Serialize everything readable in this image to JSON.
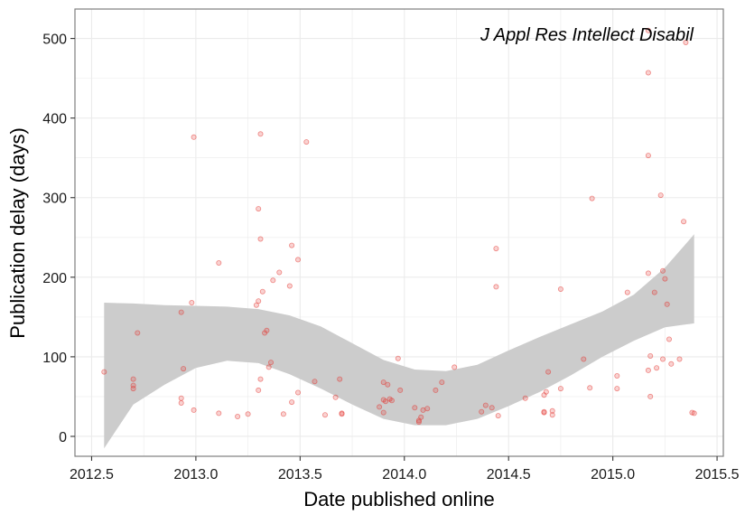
{
  "chart_data": {
    "type": "scatter",
    "title": "",
    "annotation": "J Appl Res Intellect Disabil",
    "xlabel": "Date published online",
    "ylabel": "Publication delay (days)",
    "xlim": [
      2012.42,
      2015.53
    ],
    "ylim": [
      -25,
      537
    ],
    "xticks": [
      2012.5,
      2013.0,
      2013.5,
      2014.0,
      2014.5,
      2015.0,
      2015.5
    ],
    "xtick_labels": [
      "2012.5",
      "2013.0",
      "2013.5",
      "2014.0",
      "2014.5",
      "2015.0",
      "2015.5"
    ],
    "yticks": [
      0,
      100,
      200,
      300,
      400,
      500
    ],
    "ytick_labels": [
      "0",
      "100",
      "200",
      "300",
      "400",
      "500"
    ],
    "grid": true,
    "colors": {
      "points": "#e3342f",
      "band": "#cccccc",
      "panel_border": "#7f7f7f",
      "grid": "#ebebeb"
    },
    "points": [
      [
        2012.56,
        81
      ],
      [
        2012.7,
        72
      ],
      [
        2012.7,
        64
      ],
      [
        2012.7,
        60
      ],
      [
        2012.72,
        130
      ],
      [
        2012.93,
        156
      ],
      [
        2012.93,
        48
      ],
      [
        2012.93,
        42
      ],
      [
        2012.94,
        85
      ],
      [
        2012.98,
        168
      ],
      [
        2012.99,
        376
      ],
      [
        2012.99,
        33
      ],
      [
        2013.11,
        218
      ],
      [
        2013.11,
        29
      ],
      [
        2013.2,
        25
      ],
      [
        2013.25,
        28
      ],
      [
        2013.29,
        165
      ],
      [
        2013.3,
        286
      ],
      [
        2013.3,
        170
      ],
      [
        2013.3,
        58
      ],
      [
        2013.31,
        380
      ],
      [
        2013.31,
        248
      ],
      [
        2013.31,
        72
      ],
      [
        2013.32,
        182
      ],
      [
        2013.33,
        130
      ],
      [
        2013.34,
        133
      ],
      [
        2013.35,
        87
      ],
      [
        2013.36,
        93
      ],
      [
        2013.37,
        196
      ],
      [
        2013.4,
        206
      ],
      [
        2013.42,
        28
      ],
      [
        2013.45,
        189
      ],
      [
        2013.46,
        240
      ],
      [
        2013.46,
        43
      ],
      [
        2013.49,
        222
      ],
      [
        2013.49,
        55
      ],
      [
        2013.53,
        370
      ],
      [
        2013.57,
        69
      ],
      [
        2013.62,
        27
      ],
      [
        2013.67,
        49
      ],
      [
        2013.69,
        72
      ],
      [
        2013.7,
        29
      ],
      [
        2013.7,
        28
      ],
      [
        2013.88,
        37
      ],
      [
        2013.9,
        30
      ],
      [
        2013.9,
        68
      ],
      [
        2013.9,
        46
      ],
      [
        2013.91,
        44
      ],
      [
        2013.92,
        65
      ],
      [
        2013.93,
        47
      ],
      [
        2013.94,
        45
      ],
      [
        2013.97,
        98
      ],
      [
        2013.98,
        58
      ],
      [
        2014.05,
        36
      ],
      [
        2014.07,
        20
      ],
      [
        2014.07,
        18
      ],
      [
        2014.08,
        24
      ],
      [
        2014.09,
        33
      ],
      [
        2014.11,
        35
      ],
      [
        2014.15,
        58
      ],
      [
        2014.18,
        68
      ],
      [
        2014.24,
        87
      ],
      [
        2014.37,
        31
      ],
      [
        2014.39,
        39
      ],
      [
        2014.42,
        36
      ],
      [
        2014.44,
        236
      ],
      [
        2014.44,
        188
      ],
      [
        2014.45,
        26
      ],
      [
        2014.58,
        48
      ],
      [
        2014.67,
        30
      ],
      [
        2014.67,
        31
      ],
      [
        2014.67,
        52
      ],
      [
        2014.68,
        56
      ],
      [
        2014.69,
        81
      ],
      [
        2014.71,
        32
      ],
      [
        2014.71,
        27
      ],
      [
        2014.75,
        185
      ],
      [
        2014.75,
        60
      ],
      [
        2014.86,
        97
      ],
      [
        2014.89,
        61
      ],
      [
        2014.9,
        299
      ],
      [
        2015.02,
        76
      ],
      [
        2015.02,
        60
      ],
      [
        2015.07,
        181
      ],
      [
        2015.17,
        510
      ],
      [
        2015.17,
        457
      ],
      [
        2015.17,
        353
      ],
      [
        2015.17,
        205
      ],
      [
        2015.17,
        83
      ],
      [
        2015.18,
        101
      ],
      [
        2015.18,
        50
      ],
      [
        2015.2,
        181
      ],
      [
        2015.21,
        86
      ],
      [
        2015.23,
        303
      ],
      [
        2015.24,
        97
      ],
      [
        2015.24,
        208
      ],
      [
        2015.25,
        198
      ],
      [
        2015.26,
        166
      ],
      [
        2015.27,
        122
      ],
      [
        2015.28,
        91
      ],
      [
        2015.32,
        97
      ],
      [
        2015.34,
        270
      ],
      [
        2015.35,
        495
      ],
      [
        2015.38,
        30
      ],
      [
        2015.39,
        29
      ]
    ],
    "smooth_band": {
      "x": [
        2012.56,
        2012.7,
        2012.85,
        2013.0,
        2013.15,
        2013.3,
        2013.45,
        2013.6,
        2013.75,
        2013.9,
        2014.05,
        2014.2,
        2014.35,
        2014.5,
        2014.65,
        2014.8,
        2014.95,
        2015.1,
        2015.25,
        2015.39
      ],
      "upper": [
        168,
        167,
        165,
        164,
        163,
        160,
        152,
        138,
        117,
        96,
        84,
        82,
        90,
        108,
        125,
        141,
        157,
        178,
        212,
        254
      ],
      "lower": [
        -15,
        40,
        65,
        86,
        95,
        92,
        78,
        60,
        40,
        22,
        14,
        14,
        22,
        38,
        56,
        77,
        100,
        120,
        137,
        142
      ]
    }
  }
}
